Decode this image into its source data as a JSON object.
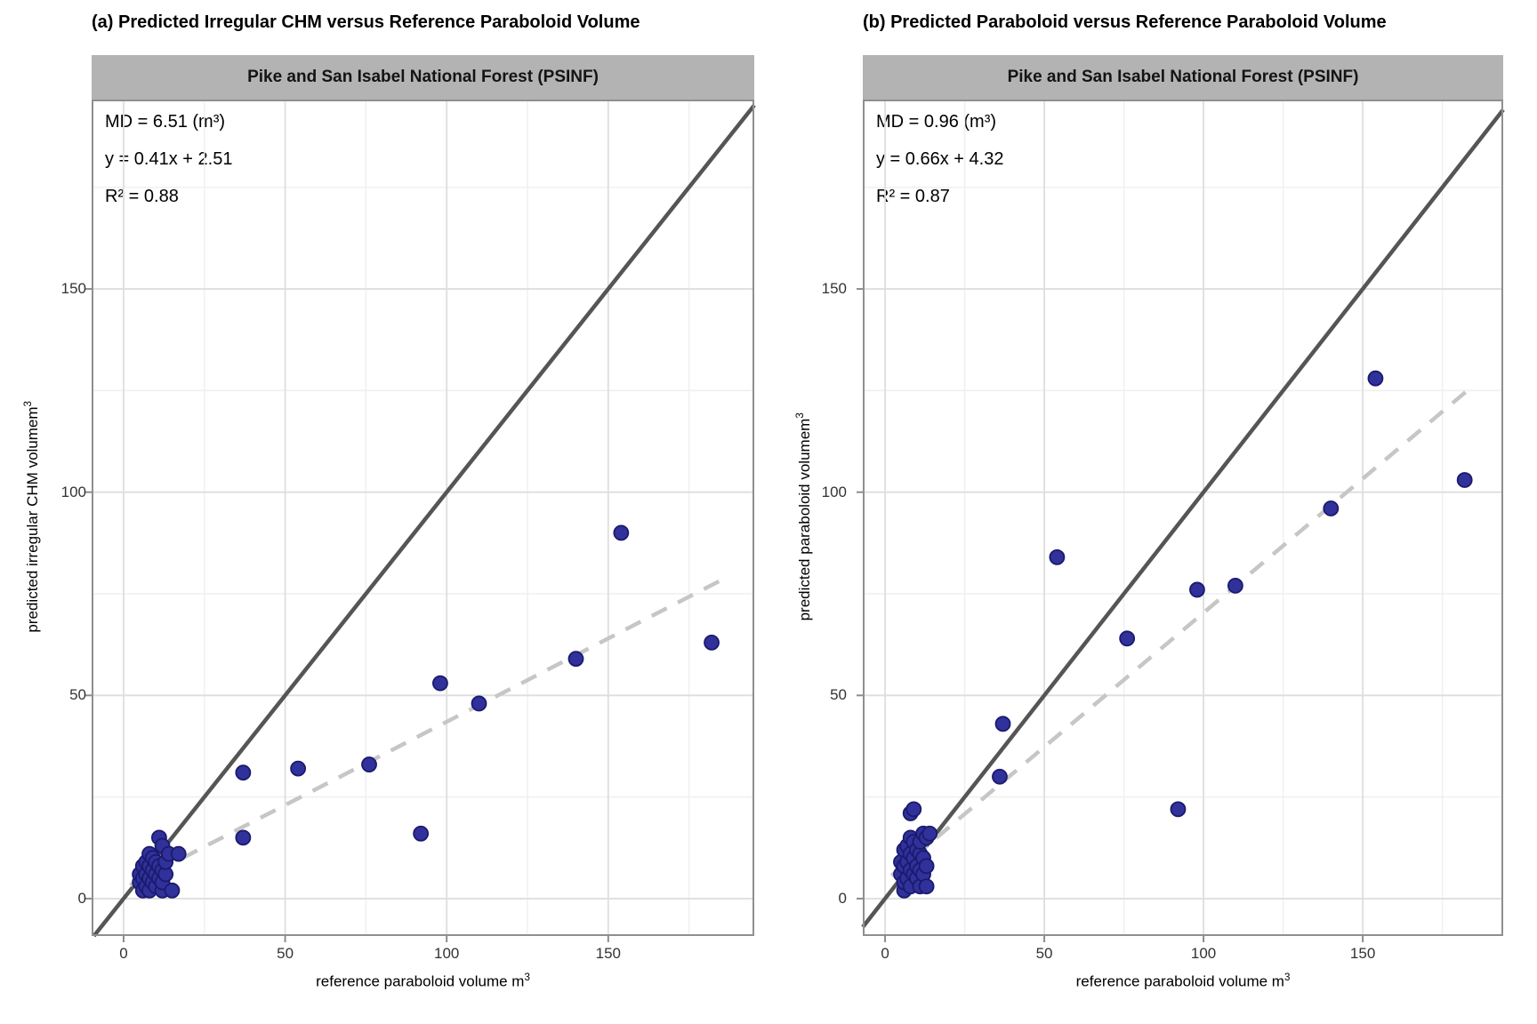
{
  "style": {
    "point_fill": "#31319B",
    "point_stroke": "#1A1A6E",
    "identity_line_color": "#555555",
    "regression_line_color": "#C6C6C6",
    "strip_bg": "#B3B3B3",
    "grid_major": "#DEDEDE",
    "grid_minor": "#EFEFEF",
    "panel_border": "#8F8F8F",
    "tick_mark_color": "#8C8C8C",
    "tick_text_color": "#333333",
    "panel_bg": "#FFFFFF"
  },
  "chart_data": [
    {
      "type": "scatter",
      "panel": "a",
      "title": "(a) Predicted Irregular CHM versus Reference Paraboloid Volume",
      "facet_label": "Pike and San Isabel National Forest (PSINF)",
      "annotations": {
        "md": "MD = 6.51 (m³)",
        "equation": "y = 0.41x + 2.51",
        "r2": "R² = 0.88"
      },
      "xlabel": "reference paraboloid volume m³",
      "ylabel": "predicted irregular CHM volumem³",
      "xlabel_parts": {
        "base": "reference paraboloid volume m",
        "sup": "3"
      },
      "ylabel_parts": {
        "base": "predicted irregular CHM volumem",
        "sup": "3"
      },
      "xlim": [
        -9.9,
        195.2
      ],
      "ylim": [
        -9.2,
        196.6
      ],
      "xticks": [
        0,
        50,
        100,
        150
      ],
      "yticks": [
        0,
        50,
        100,
        150
      ],
      "grid": "major+minor",
      "legend": "none",
      "identity_line": {
        "slope": 1,
        "intercept": 0
      },
      "regression": {
        "slope": 0.41,
        "intercept": 2.51,
        "x_range": [
          2,
          185
        ],
        "style": "dashed"
      },
      "points": [
        [
          5,
          4
        ],
        [
          5,
          6
        ],
        [
          6,
          2
        ],
        [
          6,
          5
        ],
        [
          6,
          8
        ],
        [
          7,
          3
        ],
        [
          7,
          6
        ],
        [
          7,
          9
        ],
        [
          8,
          2
        ],
        [
          8,
          5
        ],
        [
          8,
          8
        ],
        [
          8,
          11
        ],
        [
          9,
          4
        ],
        [
          9,
          7
        ],
        [
          9,
          10
        ],
        [
          10,
          3
        ],
        [
          10,
          6
        ],
        [
          10,
          9
        ],
        [
          11,
          5
        ],
        [
          11,
          8
        ],
        [
          11,
          15
        ],
        [
          12,
          2
        ],
        [
          12,
          4
        ],
        [
          12,
          7
        ],
        [
          12,
          13
        ],
        [
          13,
          6
        ],
        [
          13,
          9
        ],
        [
          14,
          11
        ],
        [
          15,
          2
        ],
        [
          17,
          11
        ],
        [
          37,
          31
        ],
        [
          37,
          15
        ],
        [
          54,
          32
        ],
        [
          76,
          33
        ],
        [
          92,
          16
        ],
        [
          98,
          53
        ],
        [
          110,
          48
        ],
        [
          140,
          59
        ],
        [
          154,
          90
        ],
        [
          182,
          63
        ]
      ]
    },
    {
      "type": "scatter",
      "panel": "b",
      "title": "(b) Predicted Paraboloid versus Reference Paraboloid Volume",
      "facet_label": "Pike and San Isabel National Forest (PSINF)",
      "annotations": {
        "md": "MD = 0.96 (m³)",
        "equation": "y = 0.66x + 4.32",
        "r2": "R² = 0.87"
      },
      "xlabel": "reference paraboloid volume m³",
      "ylabel": "predicted paraboloid volumem³",
      "xlabel_parts": {
        "base": "reference paraboloid volume m",
        "sup": "3"
      },
      "ylabel_parts": {
        "base": "predicted paraboloid volumem",
        "sup": "3"
      },
      "xlim": [
        -7.0,
        194.1
      ],
      "ylim": [
        -9.2,
        196.6
      ],
      "xticks": [
        0,
        50,
        100,
        150
      ],
      "yticks": [
        0,
        50,
        100,
        150
      ],
      "grid": "major+minor",
      "legend": "none",
      "identity_line": {
        "slope": 1,
        "intercept": 0
      },
      "regression": {
        "slope": 0.66,
        "intercept": 4.32,
        "x_range": [
          2,
          185
        ],
        "style": "dashed"
      },
      "points": [
        [
          5,
          6
        ],
        [
          5,
          9
        ],
        [
          6,
          2
        ],
        [
          6,
          4
        ],
        [
          6,
          8
        ],
        [
          6,
          12
        ],
        [
          7,
          5
        ],
        [
          7,
          9
        ],
        [
          7,
          13
        ],
        [
          8,
          3
        ],
        [
          8,
          7
        ],
        [
          8,
          11
        ],
        [
          8,
          15
        ],
        [
          8,
          21
        ],
        [
          9,
          6
        ],
        [
          9,
          10
        ],
        [
          9,
          14
        ],
        [
          9,
          22
        ],
        [
          10,
          5
        ],
        [
          10,
          8
        ],
        [
          10,
          12
        ],
        [
          11,
          3
        ],
        [
          11,
          7
        ],
        [
          11,
          11
        ],
        [
          11,
          14
        ],
        [
          12,
          6
        ],
        [
          12,
          10
        ],
        [
          12,
          16
        ],
        [
          13,
          3
        ],
        [
          13,
          8
        ],
        [
          13,
          15
        ],
        [
          14,
          16
        ],
        [
          37,
          43
        ],
        [
          36,
          30
        ],
        [
          54,
          84
        ],
        [
          76,
          64
        ],
        [
          92,
          22
        ],
        [
          98,
          76
        ],
        [
          110,
          77
        ],
        [
          140,
          96
        ],
        [
          154,
          128
        ],
        [
          182,
          103
        ]
      ]
    }
  ]
}
